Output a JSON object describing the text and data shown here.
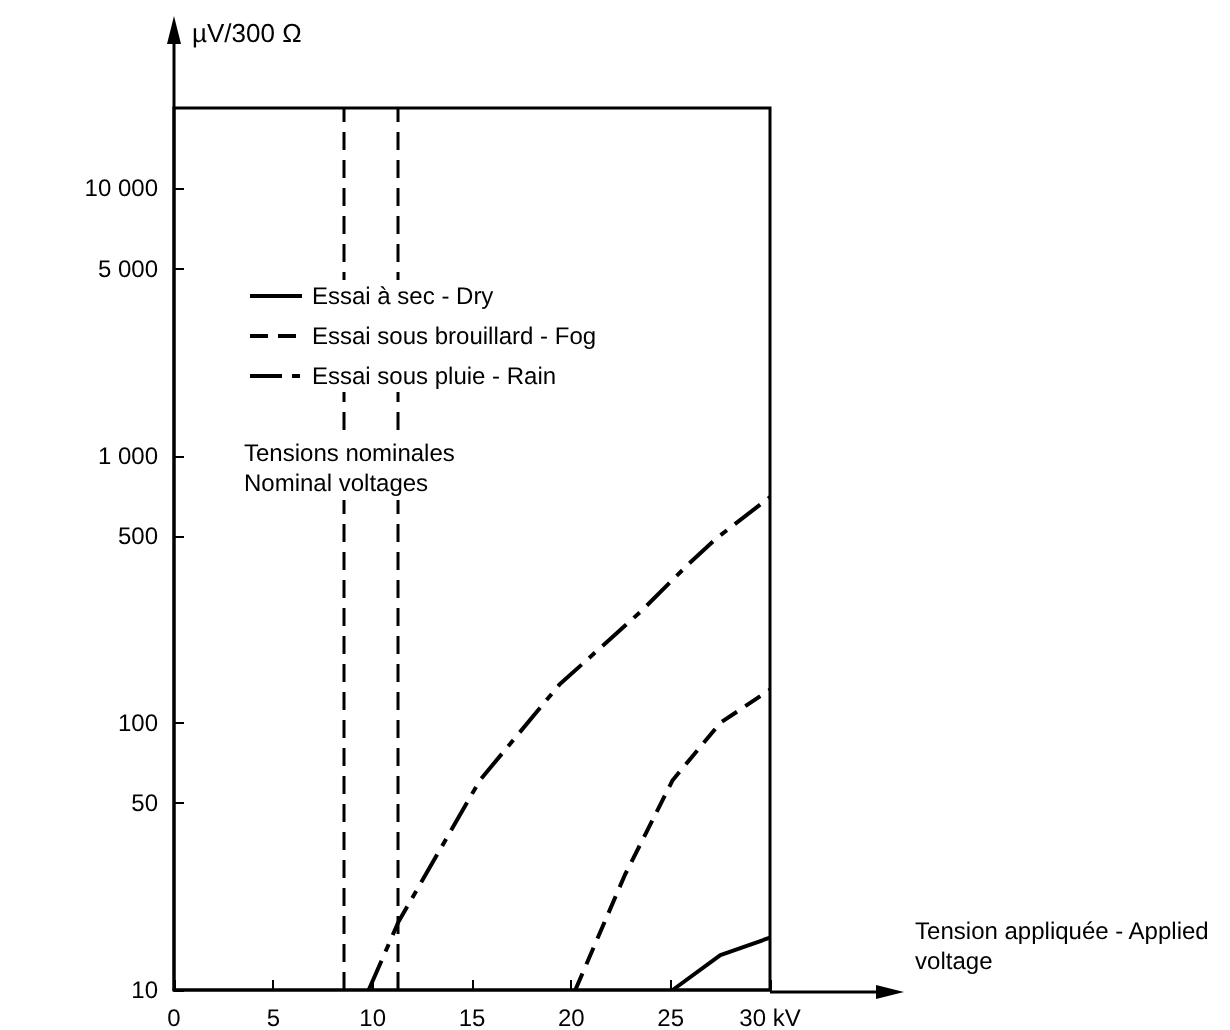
{
  "chart_data": {
    "type": "line",
    "xlabel": "Tension appliquée - Applied voltage",
    "ylabel": "µV/300 Ω",
    "xlim": [
      0,
      30
    ],
    "xticks": [
      0,
      5,
      10,
      15,
      20,
      25,
      {
        "value": 30,
        "label": "30 kV"
      }
    ],
    "ylim": [
      10,
      20000
    ],
    "log": "y",
    "yticks": [
      10,
      50,
      100,
      500,
      {
        "value": 1000,
        "label": "1 000"
      },
      {
        "value": 5000,
        "label": "5 000"
      },
      {
        "value": 10000,
        "label": "10 000"
      }
    ],
    "grid": false,
    "legend": "top left",
    "marker": "none",
    "series": [
      {
        "name": "Essai à sec - Dry",
        "color": "#000000",
        "line_style": "solid",
        "x": [
          25.1,
          27.5,
          30
        ],
        "values": [
          10,
          13.5,
          15.7
        ]
      },
      {
        "name": "Essai sous brouillard - Fog",
        "color": "#000000",
        "line_style": "dashed",
        "x": [
          20.2,
          22.7,
          25.1,
          27.5,
          30
        ],
        "values": [
          10,
          27,
          61,
          100,
          133
        ]
      },
      {
        "name": "Essai sous pluie - Rain",
        "color": "#000000",
        "line_style": "dashed",
        "x": [
          9.8,
          11.3,
          15.4,
          19.4,
          23.5,
          25.9,
          27.3,
          30
        ],
        "values": [
          10,
          18,
          61,
          139,
          261,
          393,
          490,
          700
        ]
      }
    ],
    "ref_lines": [
      {
        "axis": "x",
        "value": 8.5,
        "color": "#000000",
        "line_style": "dashed"
      },
      {
        "axis": "x",
        "value": 11.3,
        "color": "#000000",
        "line_style": "dashed"
      }
    ],
    "annotations": [
      "Tensions nominales\nNominal voltages"
    ]
  }
}
